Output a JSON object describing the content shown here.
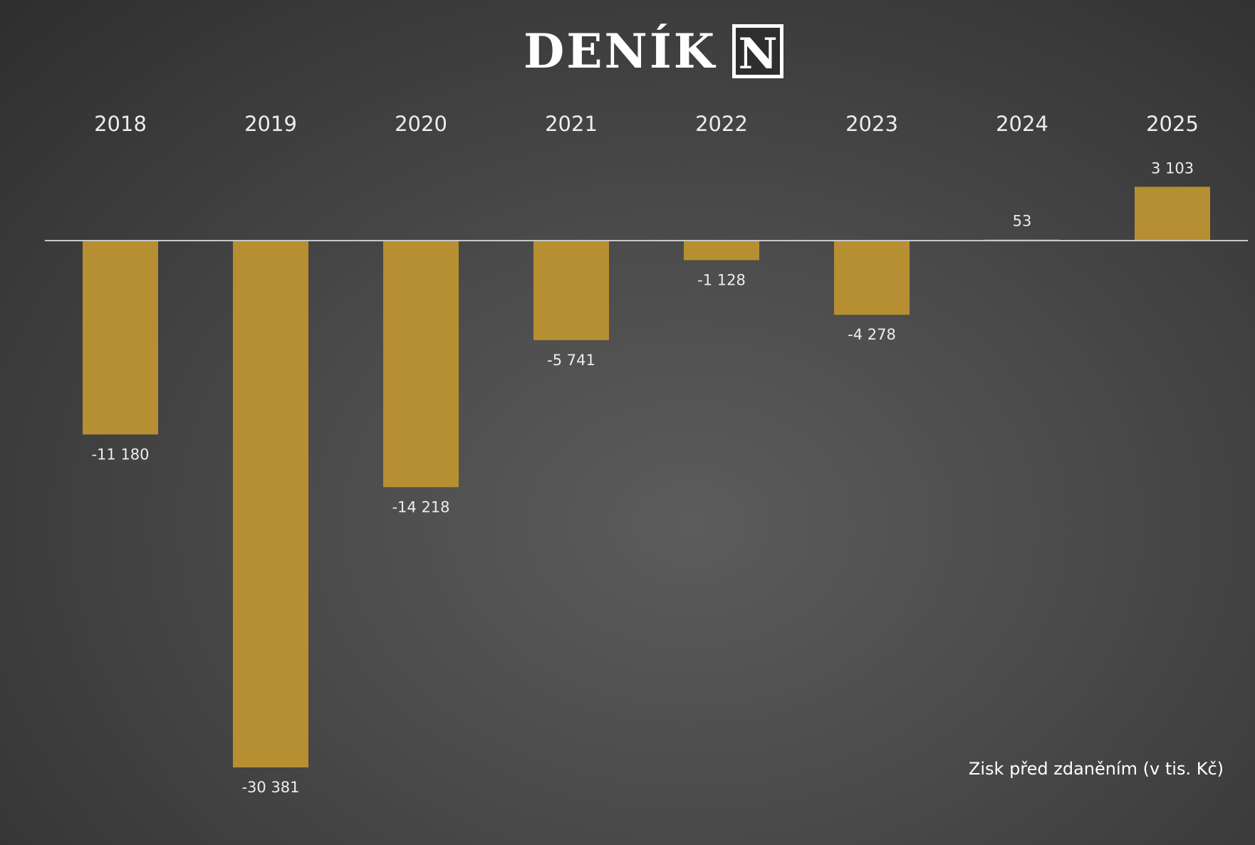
{
  "brand": {
    "wordmark": "DENÍK",
    "mark_letter": "N"
  },
  "colors": {
    "bar": "#b68f32",
    "axis_line": "#c8c8c8",
    "text": "#ededed"
  },
  "chart_data": {
    "type": "bar",
    "categories": [
      "2018",
      "2019",
      "2020",
      "2021",
      "2022",
      "2023",
      "2024",
      "2025"
    ],
    "values": [
      -11180,
      -30381,
      -14218,
      -5741,
      -1128,
      -4278,
      53,
      3103
    ],
    "value_labels": [
      "-11 180",
      "-30 381",
      "-14 218",
      "-5 741",
      "-1 128",
      "-4 278",
      "53",
      "3 103"
    ],
    "ylim": [
      -30381,
      3103
    ],
    "category_axis_position": "top",
    "grid": false,
    "legend": "none",
    "annotation": "Zisk před zdaněním (v tis. Kč)"
  }
}
